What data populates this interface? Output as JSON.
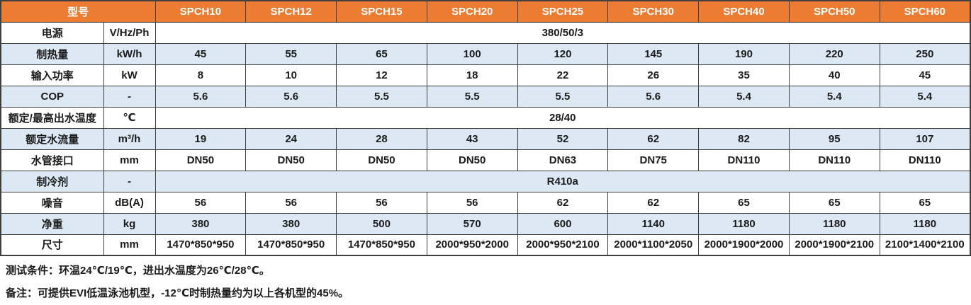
{
  "table": {
    "header": {
      "model_label": "型号",
      "models": [
        "SPCH10",
        "SPCH12",
        "SPCH15",
        "SPCH20",
        "SPCH25",
        "SPCH30",
        "SPCH40",
        "SPCH50",
        "SPCH60"
      ]
    },
    "rows": [
      {
        "label": "电源",
        "unit": "V/Hz/Ph",
        "span": "380/50/3"
      },
      {
        "label": "制热量",
        "unit": "kW/h",
        "values": [
          "45",
          "55",
          "65",
          "100",
          "120",
          "145",
          "190",
          "220",
          "250"
        ]
      },
      {
        "label": "输入功率",
        "unit": "kW",
        "values": [
          "8",
          "10",
          "12",
          "18",
          "22",
          "26",
          "35",
          "40",
          "45"
        ]
      },
      {
        "label": "COP",
        "unit": "-",
        "values": [
          "5.6",
          "5.6",
          "5.5",
          "5.5",
          "5.5",
          "5.6",
          "5.4",
          "5.4",
          "5.4"
        ]
      },
      {
        "label": "额定/最高出水温度",
        "unit": "℃",
        "span": "28/40"
      },
      {
        "label": "额定水流量",
        "unit": "m³/h",
        "values": [
          "19",
          "24",
          "28",
          "43",
          "52",
          "62",
          "82",
          "95",
          "107"
        ]
      },
      {
        "label": "水管接口",
        "unit": "mm",
        "values": [
          "DN50",
          "DN50",
          "DN50",
          "DN50",
          "DN63",
          "DN75",
          "DN110",
          "DN110",
          "DN110"
        ]
      },
      {
        "label": "制冷剂",
        "unit": "-",
        "span": "R410a"
      },
      {
        "label": "噪音",
        "unit": "dB(A)",
        "values": [
          "56",
          "56",
          "56",
          "56",
          "62",
          "62",
          "65",
          "65",
          "65"
        ]
      },
      {
        "label": "净重",
        "unit": "kg",
        "values": [
          "380",
          "380",
          "500",
          "570",
          "600",
          "1140",
          "1180",
          "1180",
          "1180"
        ]
      },
      {
        "label": "尺寸",
        "unit": "mm",
        "values": [
          "1470*850*950",
          "1470*850*950",
          "1470*850*950",
          "2000*950*2000",
          "2000*950*2100",
          "2000*1100*2050",
          "2000*1900*2000",
          "2000*1900*2100",
          "2100*1400*2100"
        ]
      }
    ],
    "colors": {
      "header_bg": "#EB7C31",
      "header_text": "#FFFFFF",
      "stripe_bg": "#DCE9F5",
      "row_bg": "#FFFFFF",
      "border": "#3F3F3F",
      "text": "#1A1A1A"
    }
  },
  "notes": [
    "测试条件：环温24℃/19℃，进出水温度为26℃/28℃。",
    "备注：可提供EVI低温泳池机型，-12℃时制热量约为以上各机型的45%。"
  ]
}
